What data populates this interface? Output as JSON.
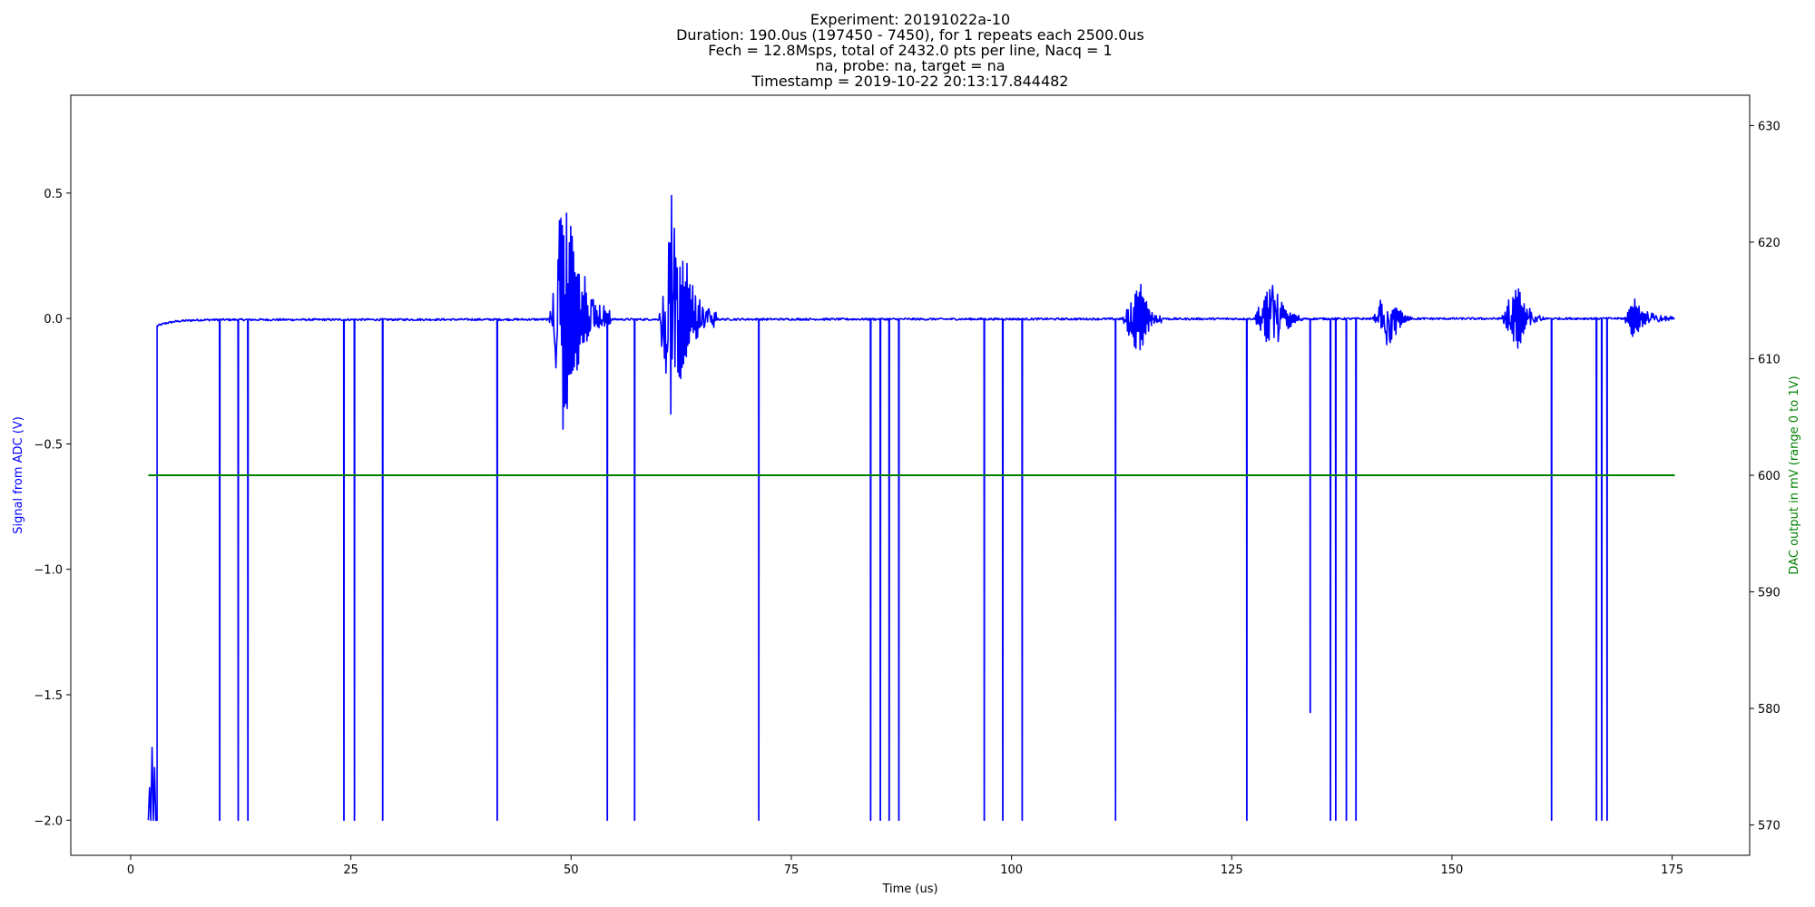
{
  "chart_data": {
    "type": "line",
    "title_lines": [
      "Experiment: 20191022a-10",
      "Duration: 190.0us (197450 - 7450), for 1 repeats each 2500.0us",
      "Fech = 12.8Msps, total of 2432.0 pts per line, Nacq = 1",
      "na, probe: na, target = na",
      "Timestamp = 2019-10-22 20:13:17.844482"
    ],
    "xlabel": "Time (us)",
    "ylabel_left": "Signal from ADC (V)",
    "ylabel_right": "DAC output in mV (range 0 to 1V)",
    "xlim": [
      -6.8,
      183.8
    ],
    "ylim_left": [
      -2.14,
      0.89
    ],
    "ylim_right": [
      567.4,
      632.6
    ],
    "x_ticks": [
      0,
      25,
      50,
      75,
      100,
      125,
      150,
      175
    ],
    "x_tick_labels": [
      "0",
      "25",
      "50",
      "75",
      "100",
      "125",
      "150",
      "175"
    ],
    "y_left_ticks": [
      0.5,
      0.0,
      -0.5,
      -1.0,
      -1.5,
      -2.0
    ],
    "y_left_tick_labels": [
      "0.5",
      "0.0",
      "−0.5",
      "−1.0",
      "−1.5",
      "−2.0"
    ],
    "y_right_ticks": [
      630,
      620,
      610,
      600,
      590,
      580,
      570
    ],
    "y_right_tick_labels": [
      "630",
      "620",
      "610",
      "600",
      "590",
      "580",
      "570"
    ],
    "grid": false,
    "series": [
      {
        "color": "#0000ff",
        "axis": "left",
        "x_range": [
          2.0,
          175.3
        ],
        "baseline_settle": {
          "start_x": 3.0,
          "start_y": -0.03,
          "end_x": 10.0,
          "end_y": -0.005
        },
        "initial_glitch": {
          "x_start": 2.0,
          "x_end": 3.0,
          "low": -2.0,
          "high": -1.71
        },
        "noise_amplitude": 0.004,
        "negative_spikes": [
          {
            "x": 10.1,
            "y": -2.0
          },
          {
            "x": 12.2,
            "y": -2.0
          },
          {
            "x": 13.3,
            "y": -2.0
          },
          {
            "x": 24.2,
            "y": -2.0
          },
          {
            "x": 25.4,
            "y": -2.0
          },
          {
            "x": 28.6,
            "y": -2.0
          },
          {
            "x": 41.6,
            "y": -2.0
          },
          {
            "x": 54.1,
            "y": -2.0
          },
          {
            "x": 57.2,
            "y": -2.0
          },
          {
            "x": 71.3,
            "y": -2.0
          },
          {
            "x": 84.0,
            "y": -2.0
          },
          {
            "x": 85.1,
            "y": -2.0
          },
          {
            "x": 86.1,
            "y": -2.0
          },
          {
            "x": 87.2,
            "y": -2.0
          },
          {
            "x": 96.9,
            "y": -2.0
          },
          {
            "x": 99.0,
            "y": -2.0
          },
          {
            "x": 101.2,
            "y": -2.0
          },
          {
            "x": 111.8,
            "y": -2.0
          },
          {
            "x": 126.7,
            "y": -2.0
          },
          {
            "x": 133.9,
            "y": -1.57
          },
          {
            "x": 136.2,
            "y": -2.0
          },
          {
            "x": 136.8,
            "y": -2.0
          },
          {
            "x": 138.0,
            "y": -2.0
          },
          {
            "x": 139.1,
            "y": -2.0
          },
          {
            "x": 161.3,
            "y": -2.0
          },
          {
            "x": 166.4,
            "y": -2.0
          },
          {
            "x": 167.0,
            "y": -2.0
          },
          {
            "x": 167.6,
            "y": -2.0
          }
        ],
        "bursts": [
          {
            "start": 47.5,
            "end": 54.5,
            "peak_x": 49.3,
            "max": 0.75,
            "min": -0.52
          },
          {
            "start": 60.0,
            "end": 66.5,
            "peak_x": 61.2,
            "max": 0.73,
            "min": -0.53
          },
          {
            "start": 112.5,
            "end": 117.5,
            "peak_x": 114.5,
            "max": 0.19,
            "min": -0.19
          },
          {
            "start": 127.5,
            "end": 133.0,
            "peak_x": 129.7,
            "max": 0.19,
            "min": -0.18
          },
          {
            "start": 141.0,
            "end": 145.5,
            "peak_x": 142.8,
            "max": 0.16,
            "min": -0.16
          },
          {
            "start": 155.5,
            "end": 160.5,
            "peak_x": 157.5,
            "max": 0.17,
            "min": -0.17
          },
          {
            "start": 169.5,
            "end": 175.3,
            "peak_x": 170.5,
            "max": 0.09,
            "min": -0.09
          }
        ]
      },
      {
        "color": "#008000",
        "axis": "right",
        "x": [
          2.0,
          175.3
        ],
        "y": [
          600,
          600
        ]
      }
    ]
  }
}
